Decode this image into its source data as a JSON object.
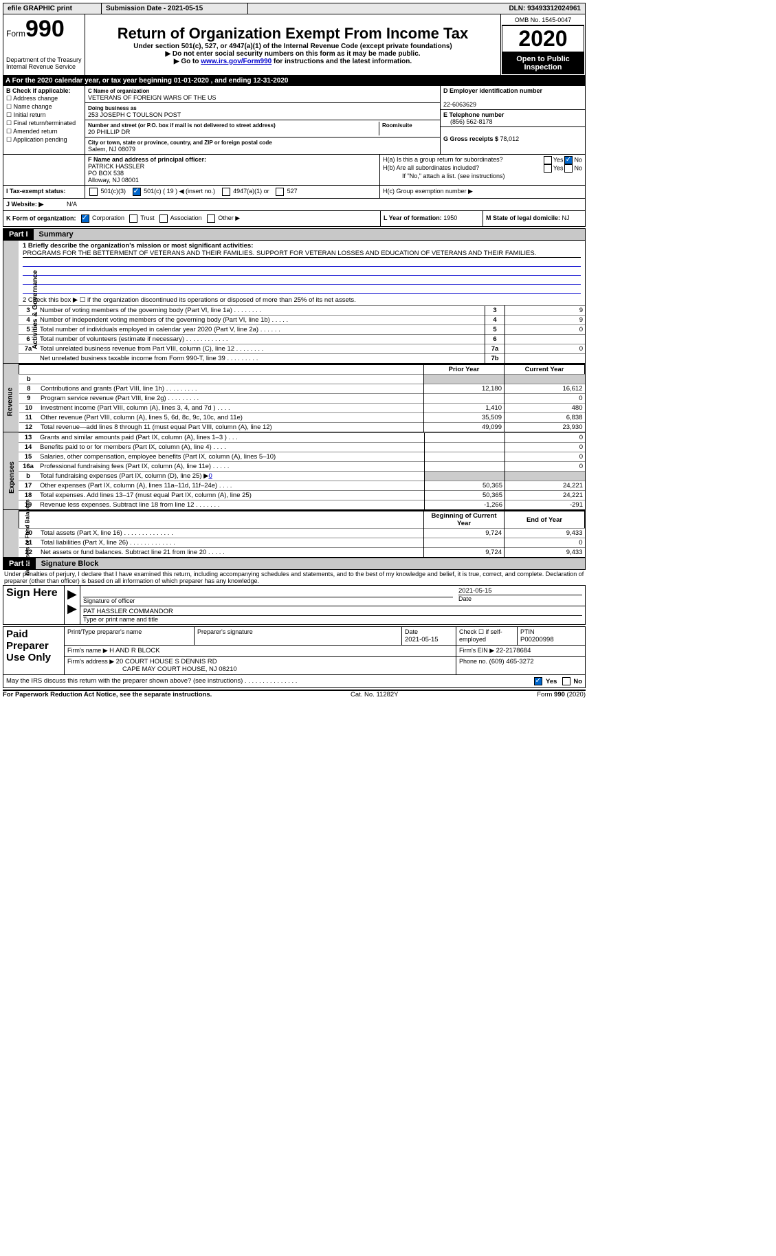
{
  "topbar": {
    "efile": "efile GRAPHIC print",
    "subdate_label": "Submission Date - ",
    "subdate": "2021-05-15",
    "dln_label": "DLN: ",
    "dln": "93493312024961"
  },
  "header": {
    "form_word": "Form",
    "form_num": "990",
    "dept1": "Department of the Treasury",
    "dept2": "Internal Revenue Service",
    "title": "Return of Organization Exempt From Income Tax",
    "sub1": "Under section 501(c), 527, or 4947(a)(1) of the Internal Revenue Code (except private foundations)",
    "sub2": "▶ Do not enter social security numbers on this form as it may be made public.",
    "sub3a": "▶ Go to ",
    "sub3_link": "www.irs.gov/Form990",
    "sub3b": " for instructions and the latest information.",
    "omb": "OMB No. 1545-0047",
    "year": "2020",
    "opi": "Open to Public Inspection"
  },
  "lineA": "A For the 2020 calendar year, or tax year beginning 01-01-2020   , and ending 12-31-2020",
  "colB": {
    "head": "B Check if applicable:",
    "items": [
      "Address change",
      "Name change",
      "Initial return",
      "Final return/terminated",
      "Amended return",
      "Application pending"
    ]
  },
  "colC": {
    "c_label": "C Name of organization",
    "c_name": "VETERANS OF FOREIGN WARS OF THE US",
    "dba_label": "Doing business as",
    "dba": "253 JOSEPH C TOULSON POST",
    "addr_label": "Number and street (or P.O. box if mail is not delivered to street address)",
    "addr": "20 PHILLIP DR",
    "room_label": "Room/suite",
    "city_label": "City or town, state or province, country, and ZIP or foreign postal code",
    "city": "Salem, NJ  08079",
    "f_label": "F Name and address of principal officer:",
    "f_name": "PATRICK HASSLER",
    "f_addr1": "PO BOX 538",
    "f_addr2": "Alloway, NJ  08001"
  },
  "colD": {
    "d_label": "D Employer identification number",
    "ein": "22-6063629",
    "e_label": "E Telephone number",
    "phone": "(856) 562-8178",
    "g_label": "G Gross receipts $ ",
    "g_val": "78,012"
  },
  "hbox": {
    "ha": "H(a)  Is this a group return for subordinates?",
    "hb": "H(b)  Are all subordinates included?",
    "hb2": "If \"No,\" attach a list. (see instructions)",
    "hc": "H(c)  Group exemption number ▶",
    "yes": "Yes",
    "no": "No"
  },
  "rowI": {
    "label": "I    Tax-exempt status:",
    "o1": "501(c)(3)",
    "o2a": "501(c) ( ",
    "o2n": "19",
    "o2b": " ) ◀ (insert no.)",
    "o3": "4947(a)(1) or",
    "o4": "527"
  },
  "rowJ": {
    "label": "J    Website: ▶",
    "val": "N/A"
  },
  "rowK": {
    "label": "K Form of organization:",
    "o1": "Corporation",
    "o2": "Trust",
    "o3": "Association",
    "o4": "Other ▶",
    "l_label": "L Year of formation: ",
    "l_val": "1950",
    "m_label": "M State of legal domicile: ",
    "m_val": "NJ"
  },
  "part1": {
    "num": "Part I",
    "title": "Summary"
  },
  "p1_1_label": "1  Briefly describe the organization's mission or most significant activities:",
  "p1_1_text": "PROGRAMS FOR THE BETTERMENT OF VETERANS AND THEIR FAMILIES. SUPPORT FOR VETERAN LOSSES AND EDUCATION OF VETERANS AND THEIR FAMILIES.",
  "p1_2": "2    Check this box ▶ ☐  if the organization discontinued its operations or disposed of more than 25% of its net assets.",
  "lines_ag": [
    {
      "n": "3",
      "t": "Number of voting members of the governing body (Part VI, line 1a)   .    .    .    .    .    .    .    .",
      "b": "3",
      "v": "9"
    },
    {
      "n": "4",
      "t": "Number of independent voting members of the governing body (Part VI, line 1b)    .    .    .    .    .",
      "b": "4",
      "v": "9"
    },
    {
      "n": "5",
      "t": "Total number of individuals employed in calendar year 2020 (Part V, line 2a)    .    .    .    .    .    .",
      "b": "5",
      "v": "0"
    },
    {
      "n": "6",
      "t": "Total number of volunteers (estimate if necessary)    .    .    .    .    .    .    .    .    .    .    .    .",
      "b": "6",
      "v": ""
    },
    {
      "n": "7a",
      "t": "Total unrelated business revenue from Part VIII, column (C), line 12   .    .    .    .    .    .    .    .",
      "b": "7a",
      "v": "0"
    },
    {
      "n": "",
      "t": "Net unrelated business taxable income from Form 990-T, line 39   .    .    .    .    .    .    .    .    .",
      "b": "7b",
      "v": ""
    }
  ],
  "col_head_prior": "Prior Year",
  "col_head_curr": "Current Year",
  "lines_rev": [
    {
      "n": "b",
      "t": "",
      "p": "",
      "c": "",
      "grey": true
    },
    {
      "n": "8",
      "t": "Contributions and grants (Part VIII, line 1h)   .    .    .    .    .    .    .    .    .",
      "p": "12,180",
      "c": "16,612"
    },
    {
      "n": "9",
      "t": "Program service revenue (Part VIII, line 2g)   .    .    .    .    .    .    .    .    .",
      "p": "",
      "c": "0"
    },
    {
      "n": "10",
      "t": "Investment income (Part VIII, column (A), lines 3, 4, and 7d )   .    .    .    .",
      "p": "1,410",
      "c": "480"
    },
    {
      "n": "11",
      "t": "Other revenue (Part VIII, column (A), lines 5, 6d, 8c, 9c, 10c, and 11e)",
      "p": "35,509",
      "c": "6,838"
    },
    {
      "n": "12",
      "t": "Total revenue—add lines 8 through 11 (must equal Part VIII, column (A), line 12)",
      "p": "49,099",
      "c": "23,930"
    }
  ],
  "lines_exp": [
    {
      "n": "13",
      "t": "Grants and similar amounts paid (Part IX, column (A), lines 1–3 )   .    .    .",
      "p": "",
      "c": "0"
    },
    {
      "n": "14",
      "t": "Benefits paid to or for members (Part IX, column (A), line 4)   .    .    .    .",
      "p": "",
      "c": "0"
    },
    {
      "n": "15",
      "t": "Salaries, other compensation, employee benefits (Part IX, column (A), lines 5–10)",
      "p": "",
      "c": "0"
    },
    {
      "n": "16a",
      "t": "Professional fundraising fees (Part IX, column (A), line 11e)   .    .    .    .    .",
      "p": "",
      "c": "0"
    },
    {
      "n": "b",
      "t": "Total fundraising expenses (Part IX, column (D), line 25) ▶",
      "p": "",
      "c": "",
      "link": "0",
      "grey": true
    },
    {
      "n": "17",
      "t": "Other expenses (Part IX, column (A), lines 11a–11d, 11f–24e)   .    .    .    .",
      "p": "50,365",
      "c": "24,221"
    },
    {
      "n": "18",
      "t": "Total expenses. Add lines 13–17 (must equal Part IX, column (A), line 25)",
      "p": "50,365",
      "c": "24,221"
    },
    {
      "n": "19",
      "t": "Revenue less expenses. Subtract line 18 from line 12  .    .    .    .    .    .    .",
      "p": "-1,266",
      "c": "-291"
    }
  ],
  "col_head_beg": "Beginning of Current Year",
  "col_head_end": "End of Year",
  "lines_net": [
    {
      "n": "20",
      "t": "Total assets (Part X, line 16)  .    .    .    .    .    .    .    .    .    .    .    .    .    .",
      "p": "9,724",
      "c": "9,433"
    },
    {
      "n": "21",
      "t": "Total liabilities (Part X, line 26)  .    .    .    .    .    .    .    .    .    .    .    .    .",
      "p": "",
      "c": "0"
    },
    {
      "n": "22",
      "t": "Net assets or fund balances. Subtract line 21 from line 20  .    .    .    .    .",
      "p": "9,724",
      "c": "9,433"
    }
  ],
  "part2": {
    "num": "Part II",
    "title": "Signature Block"
  },
  "p2_decl": "Under penalties of perjury, I declare that I have examined this return, including accompanying schedules and statements, and to the best of my knowledge and belief, it is true, correct, and complete. Declaration of preparer (other than officer) is based on all information of which preparer has any knowledge.",
  "sign": {
    "left": "Sign Here",
    "sig_officer": "Signature of officer",
    "date_lbl": "Date",
    "date_val": "2021-05-15",
    "name": "PAT HASSLER  COMMANDOR",
    "name_lbl": "Type or print name and title"
  },
  "paid": {
    "left": "Paid Preparer Use Only",
    "h1": "Print/Type preparer's name",
    "h2": "Preparer's signature",
    "h3_l": "Date",
    "h3_v": "2021-05-15",
    "h4_l": "Check ☐ if self-employed",
    "h5_l": "PTIN",
    "h5_v": "P00200998",
    "firm_name_l": "Firm's name    ▶ ",
    "firm_name": "H AND R BLOCK",
    "firm_ein_l": "Firm's EIN ▶ ",
    "firm_ein": "22-2178684",
    "firm_addr_l": "Firm's address ▶ ",
    "firm_addr1": "20 COURT HOUSE S DENNIS RD",
    "firm_addr2": "CAPE MAY COURT HOUSE, NJ  08210",
    "phone_l": "Phone no. ",
    "phone": "(609) 465-3272"
  },
  "bottom": {
    "discuss": "May the IRS discuss this return with the preparer shown above? (see instructions)   .    .    .    .    .    .    .    .    .    .    .    .    .    .    .",
    "yes": "Yes",
    "no": "No",
    "pra": "For Paperwork Reduction Act Notice, see the separate instructions.",
    "cat": "Cat. No. 11282Y",
    "form": "Form 990 (2020)"
  },
  "vside": {
    "ag": "Activities & Governance",
    "rev": "Revenue",
    "exp": "Expenses",
    "net": "Net Assets or Fund Balances"
  }
}
